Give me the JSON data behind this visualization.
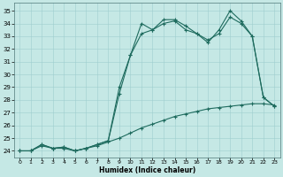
{
  "xlabel": "Humidex (Indice chaleur)",
  "bg_color": "#c5e8e5",
  "line_color": "#1e6b5e",
  "xlim": [
    -0.5,
    23.5
  ],
  "ylim": [
    23.5,
    35.6
  ],
  "xticks": [
    0,
    1,
    2,
    3,
    4,
    5,
    6,
    7,
    8,
    9,
    10,
    11,
    12,
    13,
    14,
    15,
    16,
    17,
    18,
    19,
    20,
    21,
    22,
    23
  ],
  "yticks": [
    24,
    25,
    26,
    27,
    28,
    29,
    30,
    31,
    32,
    33,
    34,
    35
  ],
  "line1_x": [
    0,
    1,
    2,
    3,
    4,
    5,
    6,
    7,
    8,
    9,
    10,
    11,
    12,
    13,
    14,
    15,
    16,
    17,
    18,
    19,
    20,
    21,
    22,
    23
  ],
  "line1_y": [
    24,
    24,
    24.5,
    24.2,
    24.3,
    24.0,
    24.2,
    24.5,
    24.8,
    29.0,
    31.5,
    34.0,
    33.5,
    34.0,
    34.2,
    33.5,
    33.2,
    32.5,
    33.5,
    35.0,
    34.2,
    33.0,
    28.2,
    27.5
  ],
  "line2_x": [
    0,
    1,
    2,
    3,
    4,
    5,
    6,
    7,
    8,
    9,
    10,
    11,
    12,
    13,
    14,
    15,
    16,
    17,
    18,
    19,
    20,
    21,
    22,
    23
  ],
  "line2_y": [
    24,
    24,
    24.5,
    24.2,
    24.3,
    24.0,
    24.2,
    24.5,
    24.8,
    28.5,
    31.5,
    33.2,
    33.5,
    34.3,
    34.3,
    33.8,
    33.2,
    32.7,
    33.2,
    34.5,
    34.0,
    33.0,
    28.2,
    27.5
  ],
  "line3_x": [
    0,
    1,
    2,
    3,
    4,
    5,
    6,
    7,
    8,
    9,
    10,
    11,
    12,
    13,
    14,
    15,
    16,
    17,
    18,
    19,
    20,
    21,
    22,
    23
  ],
  "line3_y": [
    24,
    24,
    24.4,
    24.2,
    24.2,
    24.0,
    24.2,
    24.4,
    24.7,
    25.0,
    25.4,
    25.8,
    26.1,
    26.4,
    26.7,
    26.9,
    27.1,
    27.3,
    27.4,
    27.5,
    27.6,
    27.7,
    27.7,
    27.6
  ]
}
